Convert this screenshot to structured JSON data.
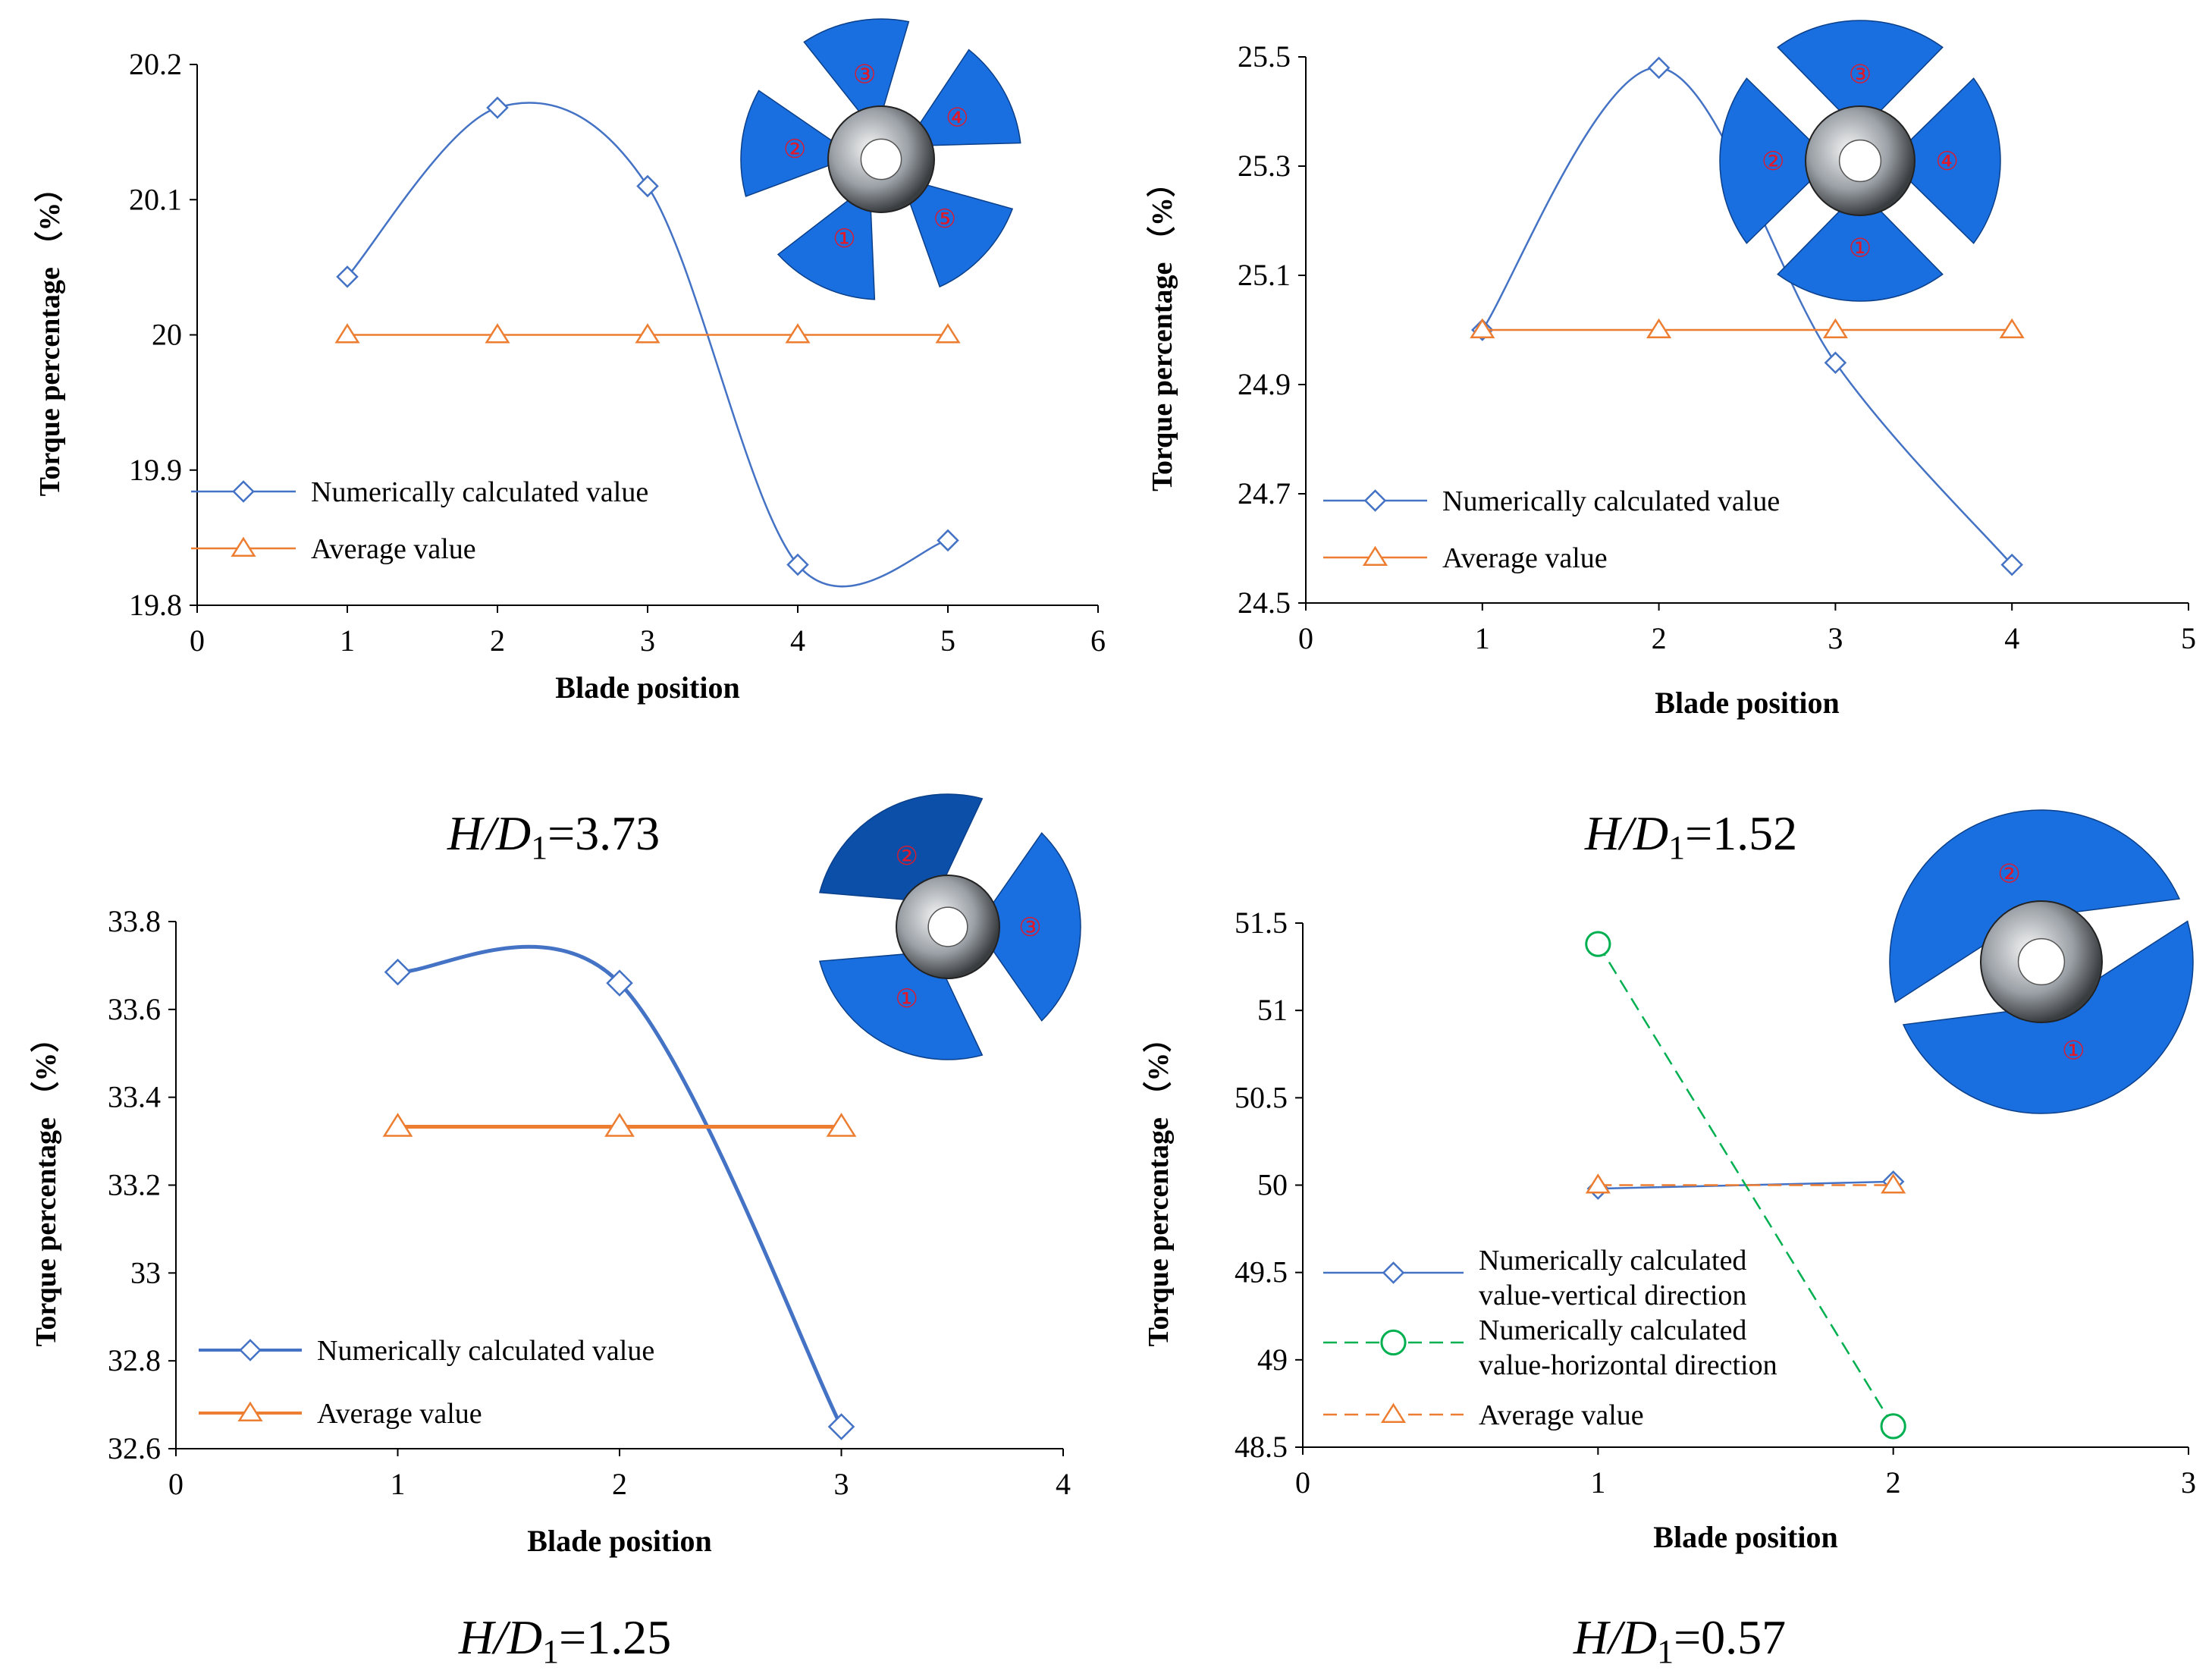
{
  "colors": {
    "numerical": "#4472c4",
    "average": "#ed7d31",
    "horizontal": "#00b050",
    "axis": "#000000",
    "blade": "#1a6fe0",
    "blade_dark": "#0b4fa8",
    "blade_number": "#e0192a"
  },
  "blade_icons": [
    "blade-1",
    "blade-2",
    "blade-3",
    "blade-4",
    "blade-5"
  ],
  "chart_data": [
    {
      "type": "line",
      "caption": {
        "var": "H",
        "sep": "/",
        "var2": "D",
        "sub": "1",
        "value": "=3.73"
      },
      "xlabel": "Blade position",
      "ylabel": "Torque percentage （%）",
      "xlim": [
        0,
        6
      ],
      "ylim": [
        19.8,
        20.2
      ],
      "xticks": [
        "0",
        "1",
        "2",
        "3",
        "4",
        "5",
        "6"
      ],
      "yticks": [
        "19.8",
        "19.9",
        "20",
        "20.1",
        "20.2"
      ],
      "blade_labels": [
        "①",
        "②",
        "③",
        "④",
        "⑤"
      ],
      "series": [
        {
          "name": "Numerically calculated value",
          "style": "smooth",
          "marker": "diamond",
          "color": "#4472c4",
          "x": [
            1,
            2,
            3,
            4,
            5
          ],
          "y": [
            20.043,
            20.168,
            20.11,
            19.83,
            19.848
          ]
        },
        {
          "name": "Average value",
          "style": "line",
          "marker": "triangle",
          "color": "#ed7d31",
          "x": [
            1,
            2,
            3,
            4,
            5
          ],
          "y": [
            20,
            20,
            20,
            20,
            20
          ]
        }
      ]
    },
    {
      "type": "line",
      "caption": {
        "var": "H",
        "sep": "/",
        "var2": "D",
        "sub": "1",
        "value": "=1.52"
      },
      "xlabel": "Blade position",
      "ylabel": "Torque percentage （%）",
      "xlim": [
        0,
        5
      ],
      "ylim": [
        24.5,
        25.5
      ],
      "xticks": [
        "0",
        "1",
        "2",
        "3",
        "4",
        "5"
      ],
      "yticks": [
        "24.5",
        "24.7",
        "24.9",
        "25.1",
        "25.3",
        "25.5"
      ],
      "blade_labels": [
        "①",
        "②",
        "③",
        "④"
      ],
      "series": [
        {
          "name": "Numerically calculated value",
          "style": "smooth",
          "marker": "diamond",
          "color": "#4472c4",
          "x": [
            1,
            2,
            3,
            4
          ],
          "y": [
            25.0,
            25.48,
            24.94,
            24.57
          ]
        },
        {
          "name": "Average value",
          "style": "line",
          "marker": "triangle",
          "color": "#ed7d31",
          "x": [
            1,
            2,
            3,
            4
          ],
          "y": [
            25,
            25,
            25,
            25
          ]
        }
      ]
    },
    {
      "type": "line",
      "caption": {
        "var": "H",
        "sep": "/",
        "var2": "D",
        "sub": "1",
        "value": "=1.25"
      },
      "xlabel": "Blade position",
      "ylabel": "Torque percentage （%）",
      "xlim": [
        0,
        4
      ],
      "ylim": [
        32.6,
        33.8
      ],
      "xticks": [
        "0",
        "1",
        "2",
        "3",
        "4"
      ],
      "yticks": [
        "32.6",
        "32.8",
        "33",
        "33.2",
        "33.4",
        "33.6",
        "33.8"
      ],
      "blade_labels": [
        "①",
        "②",
        "③"
      ],
      "series": [
        {
          "name": "Numerically calculated value",
          "style": "smooth",
          "marker": "diamond",
          "color": "#4472c4",
          "x": [
            1,
            2,
            3
          ],
          "y": [
            33.685,
            33.66,
            32.65
          ]
        },
        {
          "name": "Average value",
          "style": "line",
          "marker": "triangle",
          "color": "#ed7d31",
          "x": [
            1,
            2,
            3
          ],
          "y": [
            33.333,
            33.333,
            33.333
          ]
        }
      ]
    },
    {
      "type": "line",
      "caption": {
        "var": "H",
        "sep": "/",
        "var2": "D",
        "sub": "1",
        "value": "=0.57"
      },
      "xlabel": "Blade position",
      "ylabel": "Torque percentage （%）",
      "xlim": [
        0,
        3
      ],
      "ylim": [
        48.5,
        51.5
      ],
      "xticks": [
        "0",
        "1",
        "2",
        "3"
      ],
      "yticks": [
        "48.5",
        "49",
        "49.5",
        "50",
        "50.5",
        "51",
        "51.5"
      ],
      "blade_labels": [
        "①",
        "②"
      ],
      "series": [
        {
          "name": "Numerically calculated value-vertical direction",
          "legend_lines": [
            "Numerically calculated",
            "value-vertical direction"
          ],
          "style": "line",
          "marker": "diamond",
          "color": "#4472c4",
          "x": [
            1,
            2
          ],
          "y": [
            49.98,
            50.02
          ]
        },
        {
          "name": "Numerically calculated value-horizontal direction",
          "legend_lines": [
            "Numerically calculated",
            "value-horizontal direction"
          ],
          "style": "dashed",
          "marker": "circle",
          "color": "#00b050",
          "x": [
            1,
            2
          ],
          "y": [
            51.38,
            48.62
          ]
        },
        {
          "name": "Average value",
          "legend_lines": [
            "Average value"
          ],
          "style": "dashed",
          "marker": "triangle",
          "color": "#ed7d31",
          "x": [
            1,
            2
          ],
          "y": [
            50,
            50
          ]
        }
      ]
    }
  ]
}
